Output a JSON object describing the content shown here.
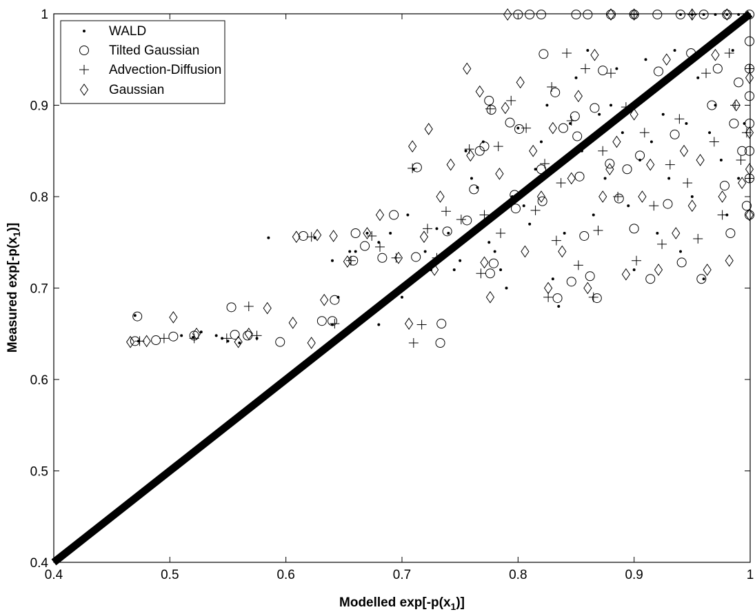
{
  "chart_data": {
    "type": "scatter",
    "xlabel": "Modelled exp[-p(x",
    "xlabel_sub": "1",
    "xlabel_end": ")]",
    "ylabel": "Measured exp[-p(x",
    "ylabel_sub": "1",
    "ylabel_end": ")]",
    "xlim": [
      0.4,
      1.0
    ],
    "ylim": [
      0.4,
      1.0
    ],
    "x_ticks": [
      "0.4",
      "0.5",
      "0.6",
      "0.7",
      "0.8",
      "0.9",
      "1"
    ],
    "y_ticks": [
      "0.4",
      "0.5",
      "0.6",
      "0.7",
      "0.8",
      "0.9",
      "1"
    ],
    "grid": false,
    "legend_position": "top-left",
    "reference_line": {
      "x": [
        0.4,
        1.0
      ],
      "y": [
        0.4,
        1.0
      ]
    },
    "series": [
      {
        "name": "WALD",
        "marker": "dot",
        "points": [
          [
            0.47,
            0.67
          ],
          [
            0.473,
            0.642
          ],
          [
            0.51,
            0.648
          ],
          [
            0.52,
            0.646
          ],
          [
            0.527,
            0.652
          ],
          [
            0.54,
            0.648
          ],
          [
            0.545,
            0.645
          ],
          [
            0.55,
            0.642
          ],
          [
            0.56,
            0.64
          ],
          [
            0.575,
            0.645
          ],
          [
            0.585,
            0.755
          ],
          [
            0.625,
            0.755
          ],
          [
            0.64,
            0.66
          ],
          [
            0.645,
            0.69
          ],
          [
            0.64,
            0.73
          ],
          [
            0.655,
            0.74
          ],
          [
            0.66,
            0.74
          ],
          [
            0.67,
            0.76
          ],
          [
            0.68,
            0.66
          ],
          [
            0.68,
            0.75
          ],
          [
            0.69,
            0.76
          ],
          [
            0.7,
            0.69
          ],
          [
            0.705,
            0.78
          ],
          [
            0.71,
            0.83
          ],
          [
            0.72,
            0.74
          ],
          [
            0.725,
            0.72
          ],
          [
            0.73,
            0.765
          ],
          [
            0.74,
            0.76
          ],
          [
            0.745,
            0.72
          ],
          [
            0.75,
            0.73
          ],
          [
            0.755,
            0.85
          ],
          [
            0.76,
            0.82
          ],
          [
            0.765,
            0.81
          ],
          [
            0.77,
            0.86
          ],
          [
            0.775,
            0.75
          ],
          [
            0.78,
            0.74
          ],
          [
            0.785,
            0.72
          ],
          [
            0.79,
            0.7
          ],
          [
            0.795,
            0.8
          ],
          [
            0.8,
            0.875
          ],
          [
            0.805,
            0.79
          ],
          [
            0.81,
            0.77
          ],
          [
            0.815,
            0.83
          ],
          [
            0.82,
            0.86
          ],
          [
            0.825,
            0.9
          ],
          [
            0.83,
            0.71
          ],
          [
            0.835,
            0.68
          ],
          [
            0.84,
            0.76
          ],
          [
            0.845,
            0.88
          ],
          [
            0.85,
            0.93
          ],
          [
            0.855,
            0.85
          ],
          [
            0.86,
            0.96
          ],
          [
            0.865,
            0.78
          ],
          [
            0.87,
            0.89
          ],
          [
            0.875,
            0.82
          ],
          [
            0.88,
            0.9
          ],
          [
            0.885,
            0.94
          ],
          [
            0.89,
            0.87
          ],
          [
            0.895,
            0.79
          ],
          [
            0.9,
            0.72
          ],
          [
            0.905,
            0.84
          ],
          [
            0.91,
            0.95
          ],
          [
            0.915,
            0.86
          ],
          [
            0.92,
            0.76
          ],
          [
            0.925,
            0.89
          ],
          [
            0.93,
            0.82
          ],
          [
            0.935,
            0.96
          ],
          [
            0.94,
            0.74
          ],
          [
            0.945,
            0.88
          ],
          [
            0.95,
            0.8
          ],
          [
            0.955,
            0.93
          ],
          [
            0.96,
            0.71
          ],
          [
            0.965,
            0.87
          ],
          [
            0.97,
            0.9
          ],
          [
            0.975,
            0.84
          ],
          [
            0.98,
            0.78
          ],
          [
            0.985,
            0.96
          ],
          [
            0.99,
            0.82
          ],
          [
            0.995,
            0.88
          ],
          [
            1.0,
            1.0
          ],
          [
            0.995,
            1.0
          ],
          [
            0.99,
            1.0
          ],
          [
            0.98,
            1.0
          ],
          [
            0.97,
            1.0
          ],
          [
            0.96,
            1.0
          ],
          [
            0.95,
            1.0
          ],
          [
            0.94,
            1.0
          ]
        ]
      },
      {
        "name": "Tilted Gaussian",
        "marker": "circle",
        "points": [
          [
            0.47,
            0.642
          ],
          [
            0.472,
            0.669
          ],
          [
            0.488,
            0.643
          ],
          [
            0.503,
            0.647
          ],
          [
            0.521,
            0.648
          ],
          [
            0.553,
            0.679
          ],
          [
            0.556,
            0.649
          ],
          [
            0.567,
            0.648
          ],
          [
            0.595,
            0.641
          ],
          [
            0.615,
            0.757
          ],
          [
            0.631,
            0.664
          ],
          [
            0.64,
            0.664
          ],
          [
            0.642,
            0.687
          ],
          [
            0.658,
            0.73
          ],
          [
            0.66,
            0.76
          ],
          [
            0.668,
            0.746
          ],
          [
            0.683,
            0.733
          ],
          [
            0.693,
            0.78
          ],
          [
            0.712,
            0.734
          ],
          [
            0.713,
            0.832
          ],
          [
            0.734,
            0.661
          ],
          [
            0.733,
            0.64
          ],
          [
            0.739,
            0.762
          ],
          [
            0.756,
            0.774
          ],
          [
            0.762,
            0.808
          ],
          [
            0.767,
            0.85
          ],
          [
            0.771,
            0.855
          ],
          [
            0.775,
            0.905
          ],
          [
            0.776,
            0.716
          ],
          [
            0.777,
            0.895
          ],
          [
            0.779,
            0.727
          ],
          [
            0.793,
            0.881
          ],
          [
            0.797,
            0.802
          ],
          [
            0.798,
            0.787
          ],
          [
            0.801,
            0.874
          ],
          [
            0.82,
            0.83
          ],
          [
            0.821,
            0.795
          ],
          [
            0.822,
            0.956
          ],
          [
            0.832,
            0.914
          ],
          [
            0.834,
            0.689
          ],
          [
            0.839,
            0.875
          ],
          [
            0.846,
            0.707
          ],
          [
            0.849,
            0.888
          ],
          [
            0.851,
            0.866
          ],
          [
            0.853,
            0.822
          ],
          [
            0.857,
            0.757
          ],
          [
            0.862,
            0.713
          ],
          [
            0.866,
            0.897
          ],
          [
            0.868,
            0.689
          ],
          [
            0.873,
            0.938
          ],
          [
            0.879,
            0.836
          ],
          [
            0.887,
            0.798
          ],
          [
            0.894,
            0.83
          ],
          [
            0.9,
            0.765
          ],
          [
            0.905,
            0.845
          ],
          [
            0.914,
            0.71
          ],
          [
            0.921,
            0.937
          ],
          [
            0.929,
            0.792
          ],
          [
            0.935,
            0.868
          ],
          [
            0.941,
            0.728
          ],
          [
            0.949,
            0.957
          ],
          [
            0.958,
            0.71
          ],
          [
            0.967,
            0.9
          ],
          [
            0.972,
            0.94
          ],
          [
            0.978,
            0.812
          ],
          [
            0.983,
            0.76
          ],
          [
            0.986,
            0.88
          ],
          [
            0.99,
            0.925
          ],
          [
            0.993,
            0.85
          ],
          [
            0.997,
            0.79
          ],
          [
            0.8,
            1.0
          ],
          [
            0.81,
            1.0
          ],
          [
            0.82,
            1.0
          ],
          [
            0.85,
            1.0
          ],
          [
            0.86,
            1.0
          ],
          [
            0.88,
            1.0
          ],
          [
            0.9,
            1.0
          ],
          [
            0.92,
            1.0
          ],
          [
            0.94,
            1.0
          ],
          [
            0.96,
            1.0
          ],
          [
            0.98,
            1.0
          ],
          [
            1.0,
            1.0
          ],
          [
            1.0,
            0.97
          ],
          [
            1.0,
            0.94
          ],
          [
            1.0,
            0.91
          ],
          [
            1.0,
            0.88
          ],
          [
            1.0,
            0.85
          ],
          [
            1.0,
            0.82
          ],
          [
            1.0,
            0.78
          ]
        ]
      },
      {
        "name": "Advection-Diffusion",
        "marker": "plus",
        "points": [
          [
            0.474,
            0.642
          ],
          [
            0.495,
            0.645
          ],
          [
            0.521,
            0.645
          ],
          [
            0.549,
            0.645
          ],
          [
            0.568,
            0.68
          ],
          [
            0.575,
            0.648
          ],
          [
            0.622,
            0.756
          ],
          [
            0.642,
            0.661
          ],
          [
            0.656,
            0.73
          ],
          [
            0.674,
            0.757
          ],
          [
            0.681,
            0.745
          ],
          [
            0.695,
            0.733
          ],
          [
            0.709,
            0.831
          ],
          [
            0.71,
            0.64
          ],
          [
            0.717,
            0.66
          ],
          [
            0.722,
            0.765
          ],
          [
            0.73,
            0.733
          ],
          [
            0.738,
            0.784
          ],
          [
            0.751,
            0.775
          ],
          [
            0.758,
            0.852
          ],
          [
            0.768,
            0.716
          ],
          [
            0.771,
            0.78
          ],
          [
            0.776,
            0.896
          ],
          [
            0.783,
            0.855
          ],
          [
            0.785,
            0.76
          ],
          [
            0.794,
            0.905
          ],
          [
            0.807,
            0.875
          ],
          [
            0.815,
            0.785
          ],
          [
            0.823,
            0.836
          ],
          [
            0.826,
            0.69
          ],
          [
            0.829,
            0.92
          ],
          [
            0.833,
            0.752
          ],
          [
            0.837,
            0.815
          ],
          [
            0.842,
            0.957
          ],
          [
            0.846,
            0.883
          ],
          [
            0.852,
            0.725
          ],
          [
            0.858,
            0.94
          ],
          [
            0.865,
            0.69
          ],
          [
            0.869,
            0.763
          ],
          [
            0.873,
            0.85
          ],
          [
            0.88,
            0.935
          ],
          [
            0.886,
            0.8
          ],
          [
            0.893,
            0.898
          ],
          [
            0.902,
            0.73
          ],
          [
            0.909,
            0.87
          ],
          [
            0.917,
            0.79
          ],
          [
            0.924,
            0.748
          ],
          [
            0.931,
            0.835
          ],
          [
            0.939,
            0.885
          ],
          [
            0.946,
            0.815
          ],
          [
            0.955,
            0.754
          ],
          [
            0.962,
            0.935
          ],
          [
            0.969,
            0.86
          ],
          [
            0.976,
            0.78
          ],
          [
            0.982,
            0.957
          ],
          [
            0.987,
            0.9
          ],
          [
            0.992,
            0.84
          ],
          [
            0.997,
            0.87
          ],
          [
            1.0,
            0.94
          ],
          [
            1.0,
            0.82
          ],
          [
            0.9,
            1.0
          ],
          [
            0.95,
            1.0
          ]
        ]
      },
      {
        "name": "Gaussian",
        "marker": "diamond",
        "points": [
          [
            0.466,
            0.641
          ],
          [
            0.48,
            0.642
          ],
          [
            0.503,
            0.668
          ],
          [
            0.523,
            0.65
          ],
          [
            0.559,
            0.641
          ],
          [
            0.568,
            0.65
          ],
          [
            0.584,
            0.678
          ],
          [
            0.606,
            0.662
          ],
          [
            0.609,
            0.756
          ],
          [
            0.622,
            0.64
          ],
          [
            0.627,
            0.758
          ],
          [
            0.633,
            0.687
          ],
          [
            0.641,
            0.757
          ],
          [
            0.653,
            0.729
          ],
          [
            0.67,
            0.76
          ],
          [
            0.681,
            0.78
          ],
          [
            0.697,
            0.733
          ],
          [
            0.706,
            0.661
          ],
          [
            0.709,
            0.855
          ],
          [
            0.719,
            0.756
          ],
          [
            0.723,
            0.874
          ],
          [
            0.728,
            0.72
          ],
          [
            0.733,
            0.8
          ],
          [
            0.742,
            0.835
          ],
          [
            0.756,
            0.94
          ],
          [
            0.759,
            0.845
          ],
          [
            0.767,
            0.915
          ],
          [
            0.771,
            0.728
          ],
          [
            0.776,
            0.69
          ],
          [
            0.784,
            0.825
          ],
          [
            0.789,
            0.897
          ],
          [
            0.791,
            1.0
          ],
          [
            0.802,
            0.925
          ],
          [
            0.806,
            0.74
          ],
          [
            0.813,
            0.85
          ],
          [
            0.82,
            0.8
          ],
          [
            0.826,
            0.7
          ],
          [
            0.83,
            0.875
          ],
          [
            0.838,
            0.74
          ],
          [
            0.846,
            0.82
          ],
          [
            0.852,
            0.91
          ],
          [
            0.86,
            0.7
          ],
          [
            0.866,
            0.955
          ],
          [
            0.873,
            0.8
          ],
          [
            0.879,
            0.83
          ],
          [
            0.885,
            0.86
          ],
          [
            0.893,
            0.715
          ],
          [
            0.9,
            0.89
          ],
          [
            0.907,
            0.8
          ],
          [
            0.914,
            0.835
          ],
          [
            0.921,
            0.72
          ],
          [
            0.928,
            0.95
          ],
          [
            0.936,
            0.76
          ],
          [
            0.943,
            0.85
          ],
          [
            0.95,
            0.79
          ],
          [
            0.957,
            0.84
          ],
          [
            0.963,
            0.72
          ],
          [
            0.97,
            0.955
          ],
          [
            0.976,
            0.8
          ],
          [
            0.982,
            0.73
          ],
          [
            0.988,
            0.9
          ],
          [
            0.993,
            0.815
          ],
          [
            1.0,
            0.78
          ],
          [
            1.0,
            0.83
          ],
          [
            1.0,
            0.87
          ],
          [
            1.0,
            0.93
          ],
          [
            0.88,
            1.0
          ],
          [
            0.9,
            1.0
          ],
          [
            0.95,
            1.0
          ],
          [
            0.98,
            1.0
          ]
        ]
      }
    ]
  }
}
